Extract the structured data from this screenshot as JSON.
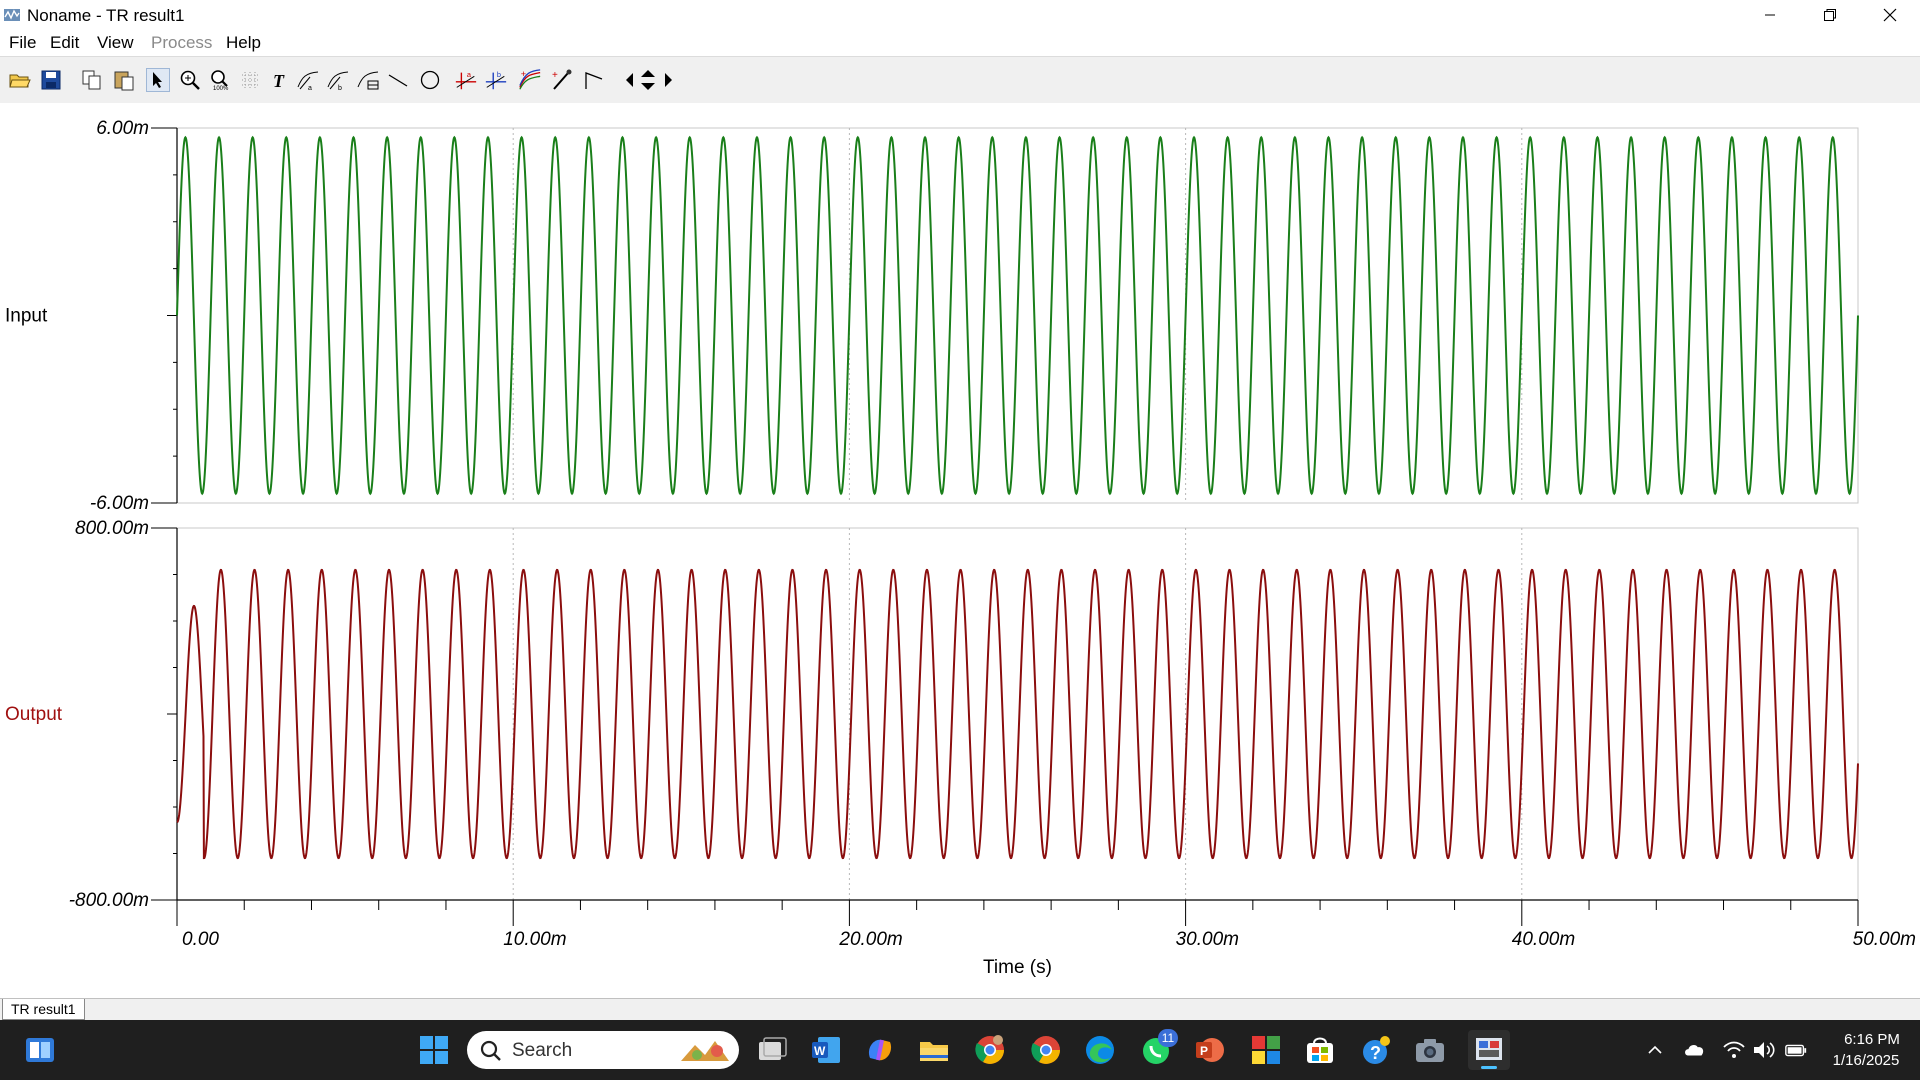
{
  "window": {
    "title": "Noname - TR result1"
  },
  "menu": [
    "File",
    "Edit",
    "View",
    "Process",
    "Help"
  ],
  "menu_disabled": [
    "Process"
  ],
  "toolbar_icons": [
    "open-icon",
    "save-icon",
    "copy-icon",
    "paste-icon",
    "select-arrow-icon",
    "zoom-in-icon",
    "zoom-100-icon",
    "grid-icon",
    "text-icon",
    "cursor-a-icon",
    "cursor-b-icon",
    "cursor-table-icon",
    "line-icon",
    "circle-icon",
    "marker-a-icon",
    "marker-b-icon",
    "curve-style-icon",
    "pen-icon",
    "corner-icon",
    "scroll-left-icon",
    "scroll-updown-icon",
    "scroll-right-icon"
  ],
  "chart_data": [
    {
      "type": "line",
      "series": [
        {
          "name": "Input",
          "color": "#1a7f1a"
        }
      ],
      "ylabel": "Input",
      "ylabel_color": "#000000",
      "y_ticks": [
        "6.00m",
        "-6.00m"
      ],
      "ylim": [
        -6.0,
        6.0
      ],
      "unit": "mV",
      "amplitude": 5.7,
      "frequency_hz": 1000,
      "xlim": [
        0,
        0.05
      ]
    },
    {
      "type": "line",
      "series": [
        {
          "name": "Output",
          "color": "#8b0e0e"
        }
      ],
      "ylabel": "Output",
      "ylabel_color": "#a01010",
      "y_ticks": [
        "800.00m",
        "-800.00m"
      ],
      "ylim": [
        -800,
        800
      ],
      "unit": "mV",
      "amplitude": 620,
      "frequency_hz": 1000,
      "xlim": [
        0,
        0.05
      ]
    }
  ],
  "x_axis": {
    "label": "Time (s)",
    "ticks": [
      "0.00",
      "10.00m",
      "20.00m",
      "30.00m",
      "40.00m",
      "50.00m"
    ],
    "values": [
      0,
      0.01,
      0.02,
      0.03,
      0.04,
      0.05
    ]
  },
  "tabs": [
    "TR result1"
  ],
  "taskbar": {
    "search_placeholder": "Search",
    "whatsapp_badge": "11",
    "time": "6:16 PM",
    "date": "1/16/2025"
  }
}
